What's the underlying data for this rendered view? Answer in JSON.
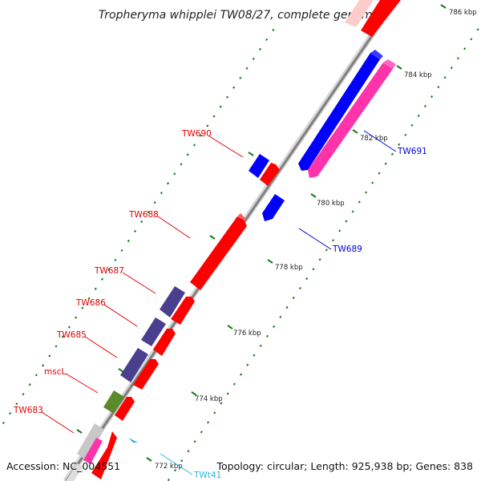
{
  "title": "Tropheryma whipplei TW08/27, complete genome",
  "footer": {
    "accession": "Accession: NC_004551",
    "summary": "Topology: circular; Length: 925,938 bp; Genes: 838"
  },
  "colors": {
    "backbone": "#8a8a8a",
    "tick": "#1a7a1a",
    "forward_cds": "#ff0000",
    "reverse_cds": "#0000ff",
    "forward_label": "#e00000",
    "reverse_label": "#0000cc",
    "trna": "#22b8e8",
    "magenta_feature": "#ff33aa",
    "purple_feature": "#4a3f8f",
    "olive_feature": "#5a8a2a",
    "grey_feature": "#bbbbbb"
  },
  "ticks": [
    {
      "label": "772 kbp"
    },
    {
      "label": "774 kbp"
    },
    {
      "label": "776 kbp"
    },
    {
      "label": "778 kbp"
    },
    {
      "label": "780 kbp"
    },
    {
      "label": "782 kbp"
    },
    {
      "label": "784 kbp"
    },
    {
      "label": "786 kbp"
    }
  ],
  "gene_labels": [
    {
      "text": "TW683",
      "strand": "forward"
    },
    {
      "text": "mscL",
      "strand": "forward"
    },
    {
      "text": "TW685",
      "strand": "forward"
    },
    {
      "text": "TW686",
      "strand": "forward"
    },
    {
      "text": "TW687",
      "strand": "forward"
    },
    {
      "text": "TW688",
      "strand": "forward"
    },
    {
      "text": "TW690",
      "strand": "forward"
    },
    {
      "text": "TW689",
      "strand": "reverse"
    },
    {
      "text": "TW691",
      "strand": "reverse"
    },
    {
      "text": "TWt41",
      "strand": "trna"
    }
  ]
}
